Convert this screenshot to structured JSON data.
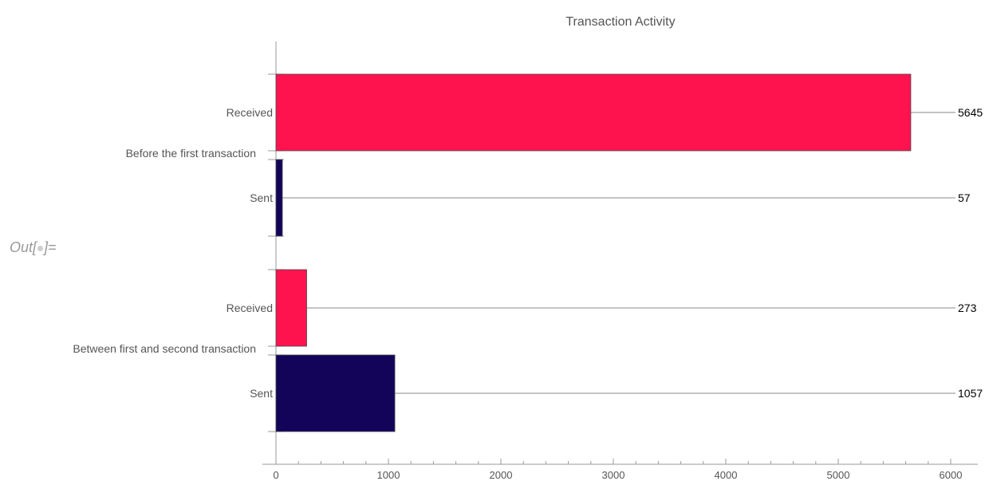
{
  "out_prompt": {
    "prefix": "Out[",
    "suffix": "]="
  },
  "chart_data": {
    "type": "bar",
    "orientation": "horizontal",
    "title": "Transaction Activity",
    "groups": [
      {
        "label": "Before the first transaction",
        "bars": [
          {
            "label": "Received",
            "value": 5645,
            "color": "#ff134f"
          },
          {
            "label": "Sent",
            "value": 57,
            "color": "#13045a"
          }
        ]
      },
      {
        "label": "Between first and second transaction",
        "bars": [
          {
            "label": "Received",
            "value": 273,
            "color": "#ff134f"
          },
          {
            "label": "Sent",
            "value": 1057,
            "color": "#13045a"
          }
        ]
      }
    ],
    "xlim": [
      0,
      6000
    ],
    "xticks": [
      0,
      1000,
      2000,
      3000,
      4000,
      5000,
      6000
    ],
    "minor_tick_step": 200,
    "grid": false,
    "value_labels": "right",
    "colors": {
      "received": "#ff134f",
      "sent": "#13045a"
    }
  }
}
